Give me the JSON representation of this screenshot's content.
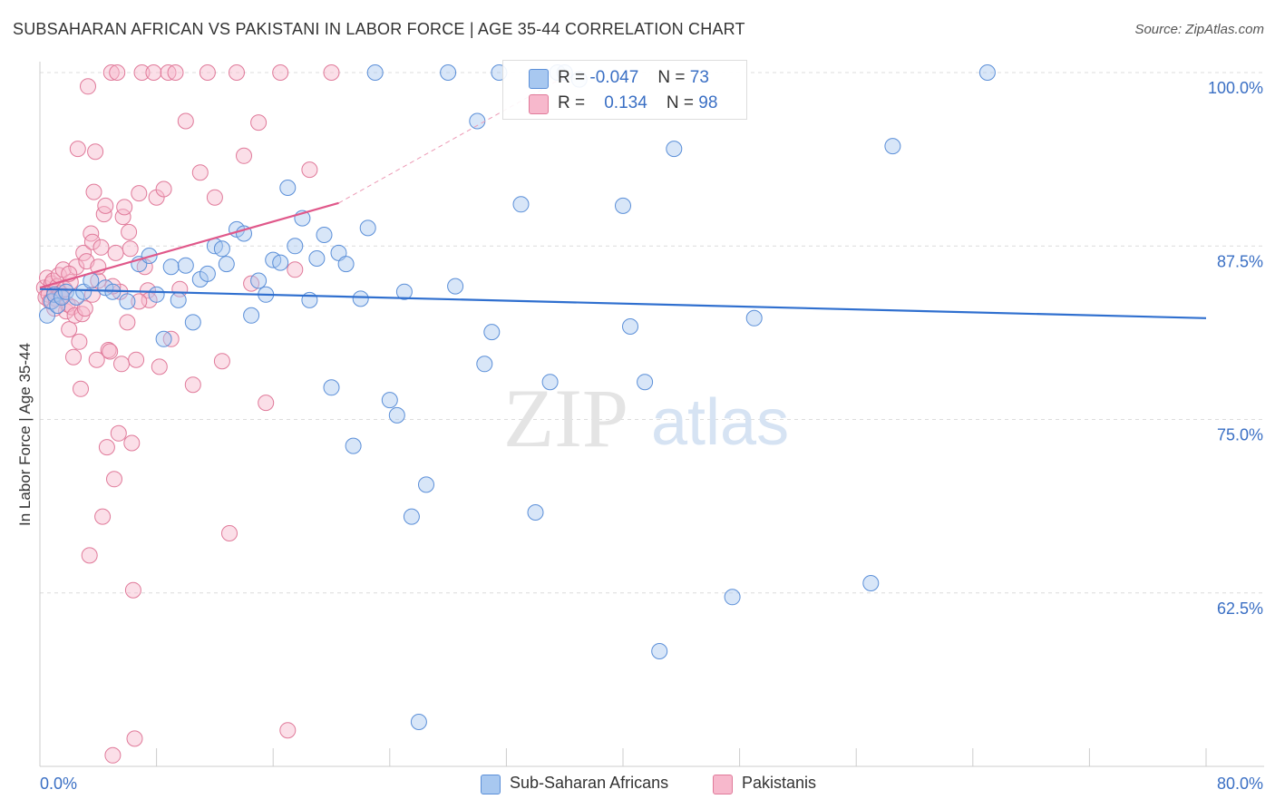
{
  "title": "SUBSAHARAN AFRICAN VS PAKISTANI IN LABOR FORCE | AGE 35-44 CORRELATION CHART",
  "source": "Source: ZipAtlas.com",
  "watermark": {
    "zip": "ZIP",
    "atlas": "atlas"
  },
  "legend": {
    "rows": [
      {
        "r_label": "R =",
        "r_value": "-0.047",
        "n_label": "N =",
        "n_value": "73",
        "color": "#a8c8f0",
        "stroke": "#5b8fd8"
      },
      {
        "r_label": "R =",
        "r_value": "0.134",
        "n_label": "N =",
        "n_value": "98",
        "color": "#f7b8cc",
        "stroke": "#e07a9a"
      }
    ]
  },
  "bottom_legend": [
    {
      "label": "Sub-Saharan Africans",
      "color": "#a8c8f0",
      "stroke": "#5b8fd8"
    },
    {
      "label": "Pakistanis",
      "color": "#f7b8cc",
      "stroke": "#e07a9a"
    }
  ],
  "chart_data": {
    "type": "scatter",
    "xlabel": "",
    "ylabel": "In Labor Force | Age 35-44",
    "xlim": [
      0,
      80
    ],
    "ylim": [
      50,
      100
    ],
    "x_tick_labels": [
      {
        "value": 0,
        "label": "0.0%"
      },
      {
        "value": 80,
        "label": "80.0%"
      }
    ],
    "y_tick_labels": [
      {
        "value": 100,
        "label": "100.0%"
      },
      {
        "value": 87.5,
        "label": "87.5%"
      },
      {
        "value": 75,
        "label": "75.0%"
      },
      {
        "value": 62.5,
        "label": "62.5%"
      }
    ],
    "grid": true,
    "series": [
      {
        "name": "Sub-Saharan Africans",
        "color": "#6f9ee0",
        "trend": {
          "x": [
            0,
            80
          ],
          "y": [
            84.4,
            82.3
          ]
        },
        "points": [
          [
            0.5,
            82.5
          ],
          [
            0.8,
            83.5
          ],
          [
            1.0,
            84.0
          ],
          [
            1.2,
            83.2
          ],
          [
            1.5,
            83.8
          ],
          [
            1.8,
            84.2
          ],
          [
            2.5,
            83.8
          ],
          [
            3.0,
            84.2
          ],
          [
            3.5,
            85.0
          ],
          [
            4.5,
            84.5
          ],
          [
            5.0,
            84.2
          ],
          [
            6.0,
            83.5
          ],
          [
            6.8,
            86.2
          ],
          [
            7.5,
            86.8
          ],
          [
            8.0,
            84.0
          ],
          [
            8.5,
            80.8
          ],
          [
            9.0,
            86.0
          ],
          [
            9.5,
            83.6
          ],
          [
            10.0,
            86.1
          ],
          [
            10.5,
            82.0
          ],
          [
            11.0,
            85.1
          ],
          [
            11.5,
            85.5
          ],
          [
            12.0,
            87.5
          ],
          [
            12.5,
            87.3
          ],
          [
            12.8,
            86.2
          ],
          [
            13.5,
            88.7
          ],
          [
            14.0,
            88.4
          ],
          [
            14.5,
            82.5
          ],
          [
            15.0,
            85.0
          ],
          [
            15.5,
            84.0
          ],
          [
            16.0,
            86.5
          ],
          [
            16.5,
            86.3
          ],
          [
            17.0,
            91.7
          ],
          [
            17.5,
            87.5
          ],
          [
            18.0,
            89.5
          ],
          [
            18.5,
            83.6
          ],
          [
            19.0,
            86.6
          ],
          [
            19.5,
            88.3
          ],
          [
            20.0,
            77.3
          ],
          [
            20.5,
            87.0
          ],
          [
            21.0,
            86.2
          ],
          [
            21.5,
            73.1
          ],
          [
            22.0,
            83.7
          ],
          [
            22.5,
            88.8
          ],
          [
            24.0,
            76.4
          ],
          [
            24.5,
            75.3
          ],
          [
            25.0,
            84.2
          ],
          [
            25.5,
            68.0
          ],
          [
            26.0,
            53.2
          ],
          [
            26.5,
            70.3
          ],
          [
            28.0,
            100.0
          ],
          [
            28.5,
            84.6
          ],
          [
            30.0,
            96.5
          ],
          [
            30.5,
            79.0
          ],
          [
            31.0,
            81.3
          ],
          [
            33.0,
            90.5
          ],
          [
            34.0,
            68.3
          ],
          [
            35.0,
            77.7
          ],
          [
            35.5,
            100.0
          ],
          [
            40.0,
            90.4
          ],
          [
            40.5,
            81.7
          ],
          [
            41.5,
            77.7
          ],
          [
            42.5,
            58.3
          ],
          [
            43.5,
            94.5
          ],
          [
            47.5,
            62.2
          ],
          [
            49.0,
            82.3
          ],
          [
            57.0,
            63.2
          ],
          [
            58.5,
            94.7
          ],
          [
            65.0,
            100.0
          ],
          [
            36.0,
            100.0
          ],
          [
            37.0,
            99.5
          ],
          [
            23.0,
            100.0
          ],
          [
            31.5,
            100.0
          ]
        ]
      },
      {
        "name": "Pakistanis",
        "color": "#f190b0",
        "trend": {
          "x": [
            0,
            20.5
          ],
          "y": [
            84.5,
            90.6
          ]
        },
        "trend_ext": {
          "x": [
            20.5,
            36.5
          ],
          "y": [
            90.6,
            100.0
          ]
        },
        "points": [
          [
            0.3,
            84.5
          ],
          [
            0.4,
            83.8
          ],
          [
            0.5,
            85.2
          ],
          [
            0.6,
            84.0
          ],
          [
            0.7,
            83.5
          ],
          [
            0.8,
            84.8
          ],
          [
            0.9,
            85.0
          ],
          [
            1.0,
            84.2
          ],
          [
            1.1,
            83.7
          ],
          [
            1.2,
            84.6
          ],
          [
            1.3,
            85.4
          ],
          [
            1.4,
            84.1
          ],
          [
            1.5,
            83.9
          ],
          [
            1.6,
            85.8
          ],
          [
            1.7,
            84.4
          ],
          [
            1.8,
            82.8
          ],
          [
            1.9,
            83.3
          ],
          [
            2.0,
            81.5
          ],
          [
            2.1,
            84.9
          ],
          [
            2.2,
            83.1
          ],
          [
            2.3,
            79.5
          ],
          [
            2.4,
            82.5
          ],
          [
            2.5,
            86.0
          ],
          [
            2.6,
            94.5
          ],
          [
            2.7,
            80.6
          ],
          [
            2.8,
            77.2
          ],
          [
            2.9,
            82.6
          ],
          [
            3.0,
            87.0
          ],
          [
            3.1,
            83.0
          ],
          [
            3.2,
            86.4
          ],
          [
            3.3,
            99.0
          ],
          [
            3.4,
            65.2
          ],
          [
            3.5,
            88.4
          ],
          [
            3.6,
            87.8
          ],
          [
            3.7,
            91.4
          ],
          [
            3.8,
            94.3
          ],
          [
            3.9,
            79.3
          ],
          [
            4.0,
            85.0
          ],
          [
            4.2,
            87.4
          ],
          [
            4.3,
            68.0
          ],
          [
            4.4,
            89.8
          ],
          [
            4.5,
            90.4
          ],
          [
            4.6,
            73.0
          ],
          [
            4.7,
            80.0
          ],
          [
            4.8,
            79.9
          ],
          [
            4.9,
            100.0
          ],
          [
            5.0,
            50.8
          ],
          [
            5.1,
            70.7
          ],
          [
            5.2,
            87.0
          ],
          [
            5.3,
            100.0
          ],
          [
            5.4,
            74.0
          ],
          [
            5.5,
            84.2
          ],
          [
            5.6,
            79.0
          ],
          [
            5.7,
            89.6
          ],
          [
            5.8,
            90.3
          ],
          [
            6.0,
            82.0
          ],
          [
            6.1,
            88.5
          ],
          [
            6.2,
            87.3
          ],
          [
            6.3,
            73.3
          ],
          [
            6.4,
            62.7
          ],
          [
            6.5,
            52.0
          ],
          [
            6.6,
            79.3
          ],
          [
            6.8,
            91.3
          ],
          [
            7.0,
            100.0
          ],
          [
            7.2,
            86.0
          ],
          [
            7.4,
            84.3
          ],
          [
            7.5,
            83.6
          ],
          [
            7.8,
            100.0
          ],
          [
            8.0,
            91.0
          ],
          [
            8.2,
            78.8
          ],
          [
            8.5,
            91.6
          ],
          [
            8.8,
            100.0
          ],
          [
            9.0,
            80.8
          ],
          [
            9.3,
            100.0
          ],
          [
            9.6,
            84.4
          ],
          [
            10.0,
            96.5
          ],
          [
            10.5,
            77.5
          ],
          [
            11.0,
            92.8
          ],
          [
            11.5,
            100.0
          ],
          [
            12.0,
            91.0
          ],
          [
            12.5,
            79.2
          ],
          [
            13.0,
            66.8
          ],
          [
            13.5,
            100.0
          ],
          [
            14.0,
            94.0
          ],
          [
            14.5,
            84.8
          ],
          [
            15.0,
            96.4
          ],
          [
            15.5,
            76.2
          ],
          [
            16.5,
            100.0
          ],
          [
            17.0,
            52.6
          ],
          [
            17.5,
            85.8
          ],
          [
            18.5,
            93.0
          ],
          [
            20.0,
            100.0
          ],
          [
            3.6,
            84.0
          ],
          [
            2.0,
            85.5
          ],
          [
            1.0,
            83.0
          ],
          [
            4.0,
            86.0
          ],
          [
            6.8,
            83.5
          ],
          [
            5.0,
            84.6
          ]
        ]
      }
    ]
  }
}
